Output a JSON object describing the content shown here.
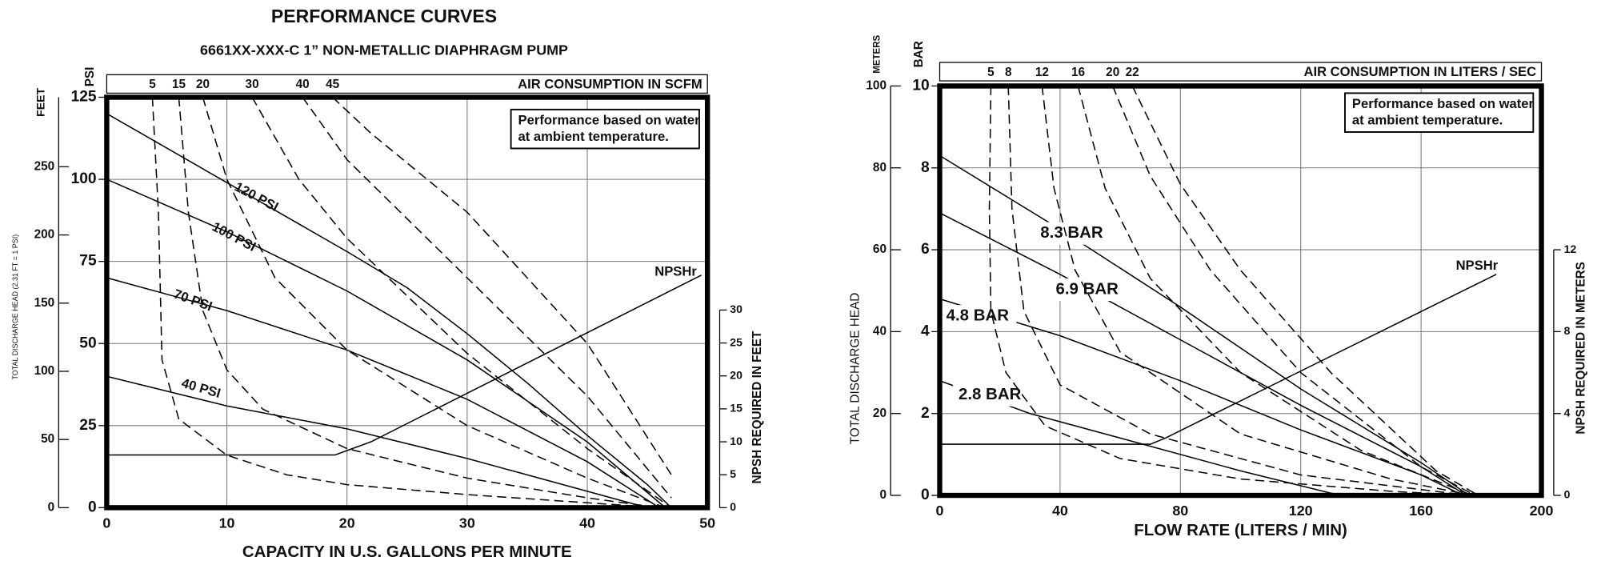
{
  "chart_data": [
    {
      "type": "line",
      "title": "PERFORMANCE CURVES",
      "subtitle": "6661XX-XXX-C   1” NON-METALLIC DIAPHRAGM PUMP",
      "x_label": "CAPACITY IN U.S. GALLONS PER MINUTE",
      "y_label": "TOTAL DISCHARGE HEAD (2.31 FT = 1 PSI)",
      "y_unit_label": "PSI",
      "y3_label": "FEET",
      "y2_label": "NPSH REQUIRED IN FEET",
      "top_axis_label": "AIR CONSUMPTION IN SCFM",
      "note": [
        "Performance based on water",
        "at ambient temperature."
      ],
      "xlim": [
        0,
        50
      ],
      "xticks": [
        0,
        10,
        20,
        30,
        40,
        50
      ],
      "ylim": [
        0,
        125
      ],
      "yticks": [
        0,
        25,
        50,
        75,
        100,
        125
      ],
      "y3lim": [
        0,
        301
      ],
      "y3ticks": [
        0,
        50,
        100,
        150,
        200,
        250
      ],
      "y2lim": [
        0,
        62.3
      ],
      "y2ticks": [
        0,
        5,
        10,
        15,
        20,
        25,
        30
      ],
      "grid": true,
      "series": [
        {
          "name": "120 PSI",
          "color": "#000000",
          "style": "solid",
          "x": [
            0,
            10,
            20,
            25,
            30,
            35,
            40,
            45,
            47
          ],
          "values": [
            120,
            99,
            78,
            67,
            53,
            38,
            22,
            7,
            0
          ]
        },
        {
          "name": "100 PSI",
          "color": "#000000",
          "style": "solid",
          "x": [
            0,
            10,
            20,
            30,
            40,
            46.5
          ],
          "values": [
            100,
            84,
            66,
            45,
            20,
            0
          ]
        },
        {
          "name": "70 PSI",
          "color": "#000000",
          "style": "solid",
          "x": [
            0,
            10,
            20,
            30,
            40,
            46
          ],
          "values": [
            70,
            60,
            48,
            33,
            14,
            0
          ]
        },
        {
          "name": "40 PSI",
          "color": "#000000",
          "style": "solid",
          "x": [
            0,
            10,
            20,
            30,
            40,
            45
          ],
          "values": [
            40,
            31,
            24,
            15,
            5,
            0
          ]
        },
        {
          "name": "NPSHr",
          "color": "#000000",
          "style": "solid",
          "axis": "y2",
          "x": [
            0,
            19,
            22,
            49.5
          ],
          "values": [
            8,
            8,
            10,
            35.3
          ]
        },
        {
          "name": "5",
          "color": "#000000",
          "style": "dashed",
          "x": [
            3.8,
            4.3,
            4.6,
            6,
            10,
            15,
            20,
            30,
            40,
            46
          ],
          "values": [
            125,
            90,
            45,
            27,
            16,
            10,
            7,
            4,
            1.5,
            0
          ]
        },
        {
          "name": "15",
          "color": "#000000",
          "style": "dashed",
          "x": [
            6,
            6.8,
            8,
            10,
            13,
            20,
            30,
            40,
            46
          ],
          "values": [
            125,
            90,
            60,
            42,
            30,
            18,
            9,
            3,
            0
          ]
        },
        {
          "name": "20",
          "color": "#000000",
          "style": "dashed",
          "x": [
            8,
            10,
            14,
            20,
            30,
            40,
            46.5
          ],
          "values": [
            125,
            100,
            70,
            48,
            25,
            9,
            0
          ]
        },
        {
          "name": "30",
          "color": "#000000",
          "style": "dashed",
          "x": [
            12.1,
            16,
            20,
            30,
            40,
            47
          ],
          "values": [
            125,
            100,
            82,
            47,
            18,
            0
          ]
        },
        {
          "name": "40",
          "color": "#000000",
          "style": "dashed",
          "x": [
            16.3,
            20,
            25,
            30,
            40,
            47
          ],
          "values": [
            125,
            106,
            88,
            70,
            34,
            3
          ]
        },
        {
          "name": "45",
          "color": "#000000",
          "style": "dashed",
          "x": [
            18.8,
            22,
            30,
            40,
            47
          ],
          "values": [
            125,
            114,
            90,
            50,
            10
          ]
        }
      ]
    },
    {
      "type": "line",
      "x_label": "FLOW RATE (LITERS / MIN)",
      "y_label": "TOTAL DISCHARGE HEAD",
      "y_unit_label": "BAR",
      "y3_label": "METERS",
      "y2_label": "NPSH REQUIRED IN METERS",
      "top_axis_label": "AIR CONSUMPTION IN LITERS / SEC",
      "note": [
        "Performance based on water",
        "at ambient temperature."
      ],
      "xlim": [
        0,
        200
      ],
      "xticks": [
        0,
        40,
        80,
        120,
        160,
        200
      ],
      "ylim": [
        0,
        10
      ],
      "yticks": [
        0,
        2,
        4,
        6,
        8,
        10
      ],
      "y3lim": [
        0,
        100
      ],
      "y3ticks": [
        0,
        20,
        40,
        60,
        80,
        100
      ],
      "y2lim": [
        0,
        20
      ],
      "y2ticks": [
        0,
        4,
        8,
        12
      ],
      "grid": true,
      "series": [
        {
          "name": "8.3 BAR",
          "color": "#000000",
          "style": "solid",
          "x": [
            0,
            40,
            80,
            120,
            160,
            176
          ],
          "values": [
            8.3,
            6.5,
            4.6,
            2.6,
            0.8,
            0
          ]
        },
        {
          "name": "6.9 BAR",
          "color": "#000000",
          "style": "solid",
          "x": [
            0,
            40,
            80,
            120,
            160,
            175
          ],
          "values": [
            6.9,
            5.4,
            3.8,
            2.2,
            0.7,
            0
          ]
        },
        {
          "name": "4.8 BAR",
          "color": "#000000",
          "style": "solid",
          "x": [
            0,
            40,
            80,
            120,
            160,
            174
          ],
          "values": [
            4.8,
            3.9,
            2.8,
            1.6,
            0.5,
            0
          ]
        },
        {
          "name": "2.8 BAR",
          "color": "#000000",
          "style": "solid",
          "x": [
            0,
            30,
            60,
            100,
            133
          ],
          "values": [
            2.8,
            2.0,
            1.4,
            0.6,
            0
          ]
        },
        {
          "name": "NPSHr",
          "color": "#000000",
          "style": "solid",
          "axis": "y2",
          "x": [
            0,
            70,
            75,
            185
          ],
          "values": [
            2.5,
            2.5,
            2.8,
            10.8
          ]
        },
        {
          "name": "5",
          "color": "#000000",
          "style": "dashed",
          "x": [
            17,
            16.5,
            17,
            22,
            35,
            60,
            100,
            150,
            176
          ],
          "values": [
            10,
            7,
            4.5,
            3,
            1.7,
            0.9,
            0.4,
            0.1,
            0
          ]
        },
        {
          "name": "8",
          "color": "#000000",
          "style": "dashed",
          "x": [
            22.8,
            24,
            28,
            40,
            70,
            120,
            176
          ],
          "values": [
            10,
            7,
            4.5,
            2.7,
            1.5,
            0.5,
            0
          ]
        },
        {
          "name": "12",
          "color": "#000000",
          "style": "dashed",
          "x": [
            34,
            38,
            45,
            60,
            100,
            150,
            177
          ],
          "values": [
            10,
            7.5,
            5.5,
            3.5,
            1.5,
            0.4,
            0
          ]
        },
        {
          "name": "16",
          "color": "#000000",
          "style": "dashed",
          "x": [
            46,
            55,
            70,
            100,
            140,
            177
          ],
          "values": [
            10,
            7.5,
            5.3,
            3,
            1.1,
            0
          ]
        },
        {
          "name": "20",
          "color": "#000000",
          "style": "dashed",
          "x": [
            57.5,
            70,
            90,
            120,
            160,
            178
          ],
          "values": [
            10,
            7.8,
            5.5,
            3,
            0.7,
            0
          ]
        },
        {
          "name": "22",
          "color": "#000000",
          "style": "dashed",
          "x": [
            64,
            80,
            100,
            130,
            165,
            179
          ],
          "values": [
            10,
            7.6,
            5.5,
            3,
            0.6,
            0
          ]
        }
      ]
    }
  ]
}
